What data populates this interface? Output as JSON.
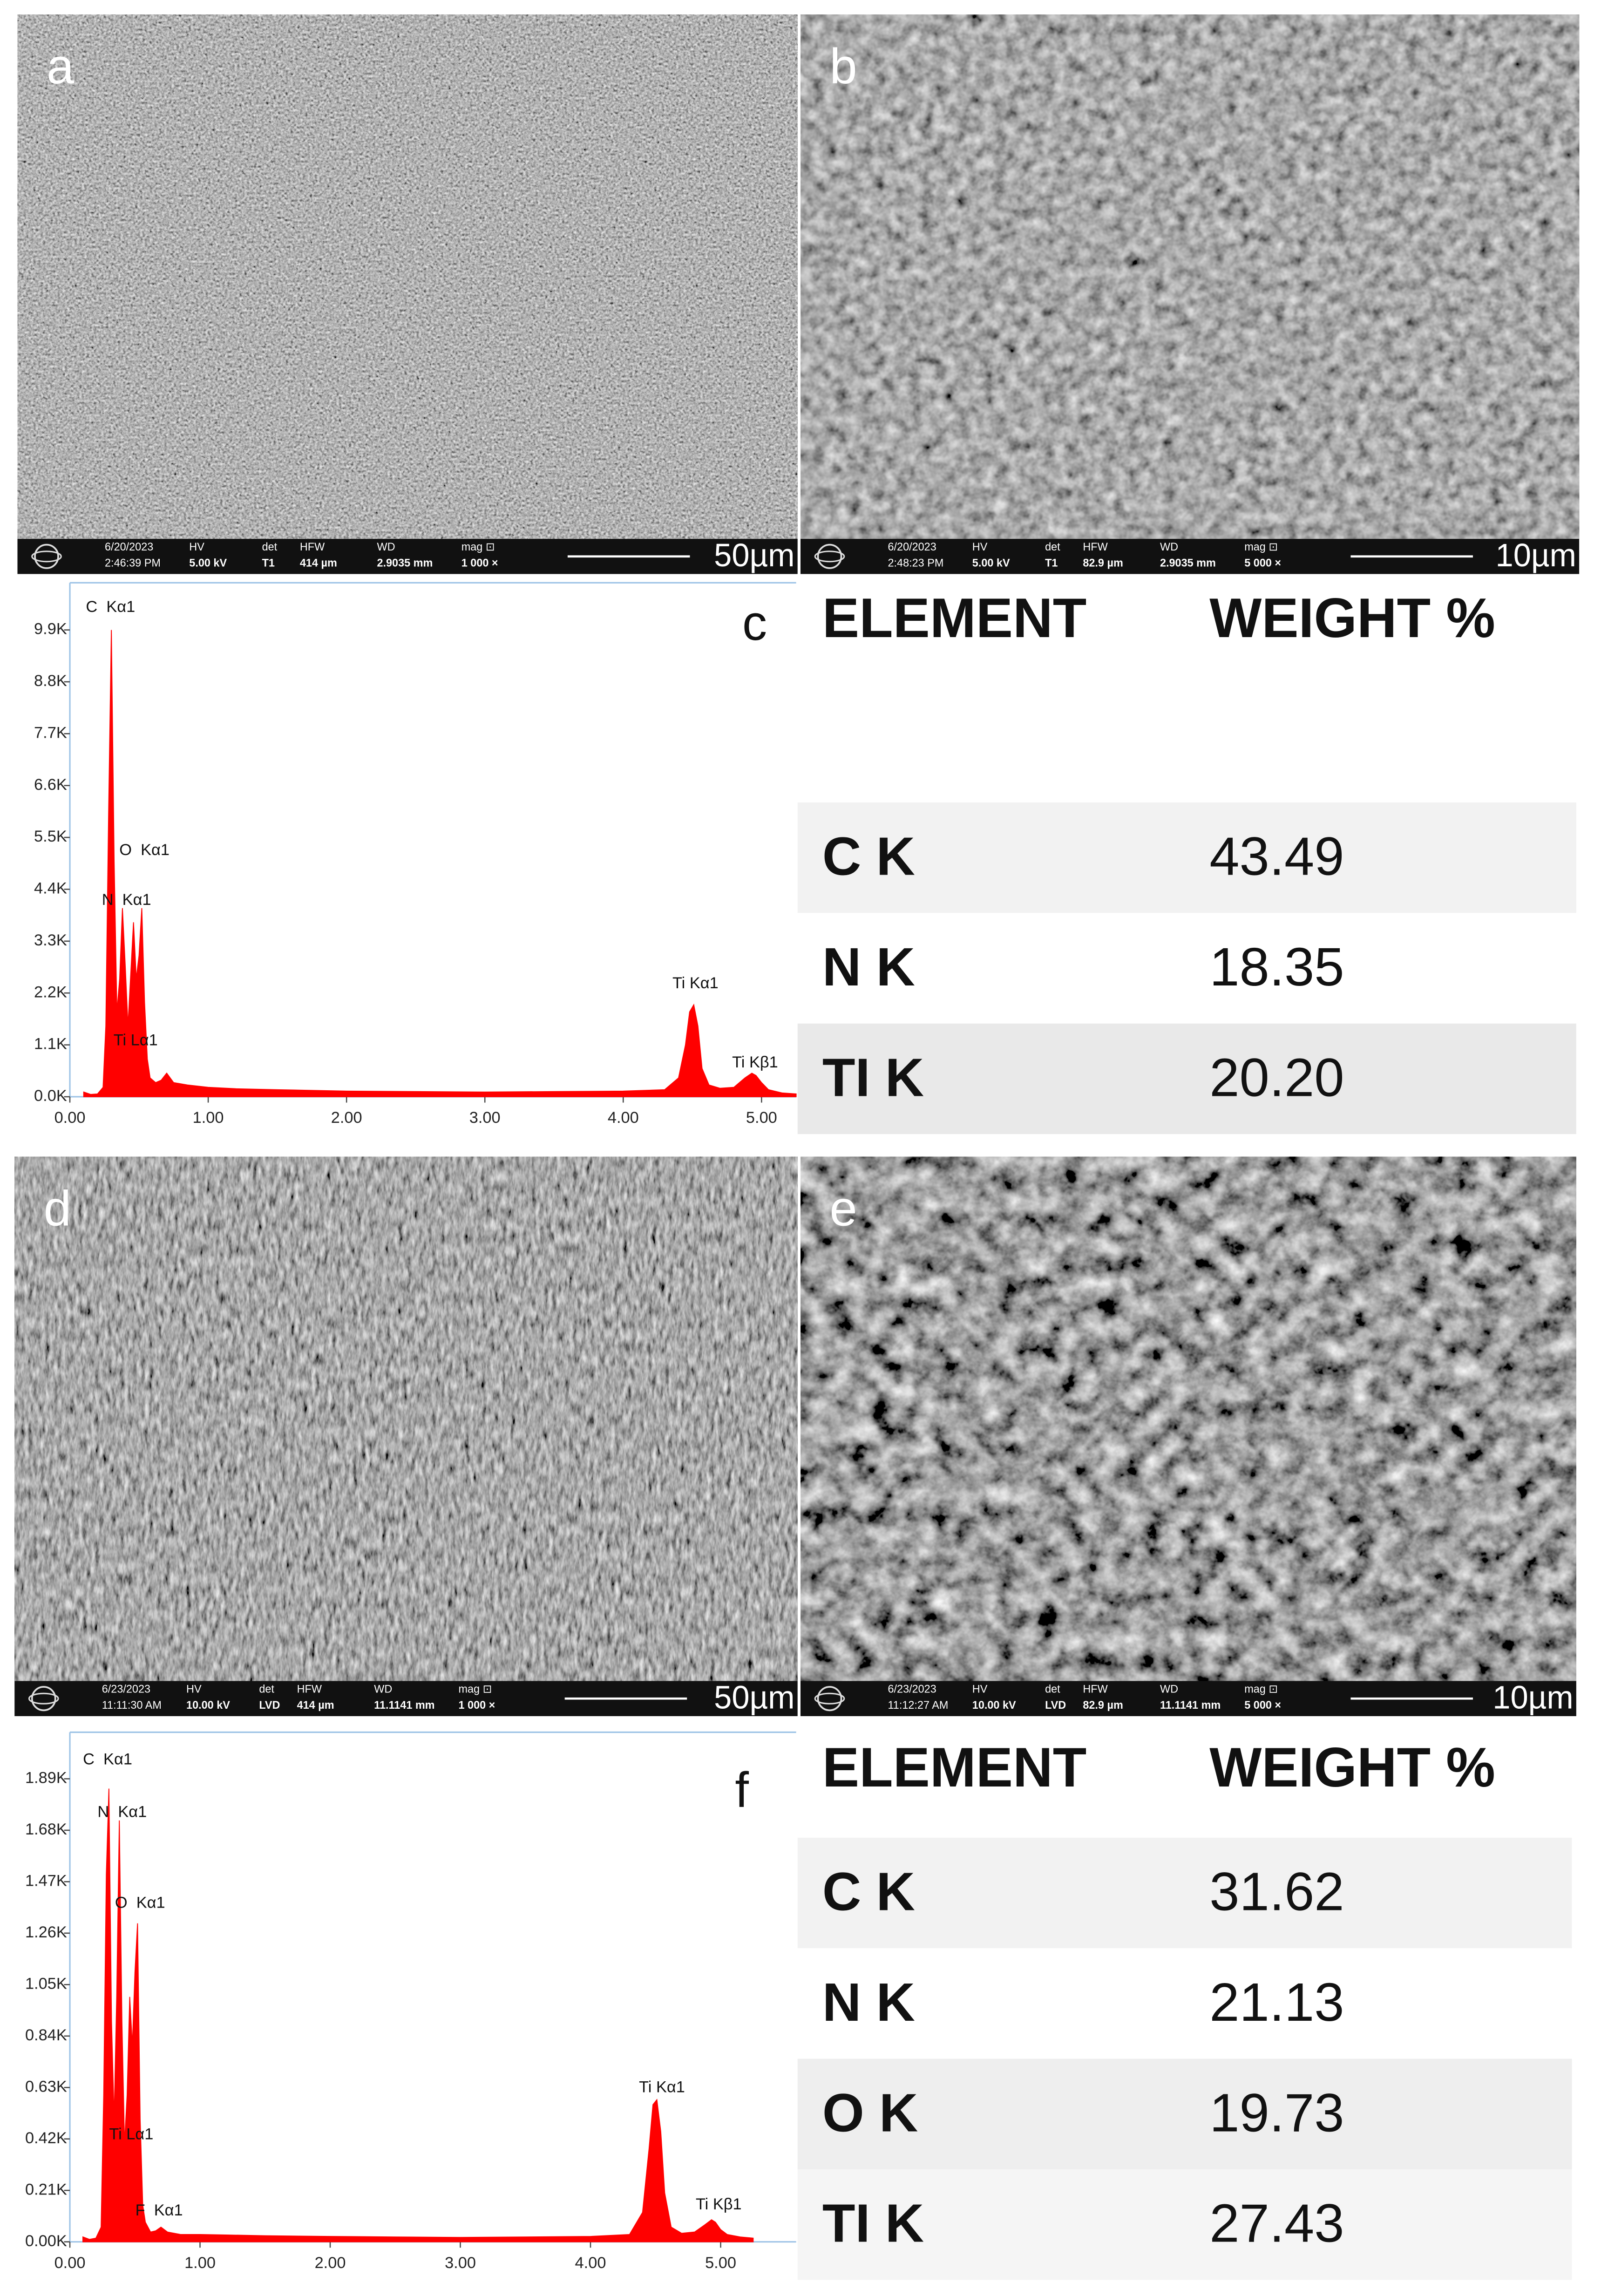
{
  "panels": [
    {
      "label": "a",
      "info": {
        "date": "6/20/2023",
        "time": "2:46:39 PM",
        "hv_label": "HV",
        "hv": "5.00 kV",
        "det_label": "det",
        "det": "T1",
        "hfw_label": "HFW",
        "hfw": "414 µm",
        "wd_label": "WD",
        "wd": "2.9035 mm",
        "mag_label": "mag ⊡",
        "mag": "1 000 ×",
        "scale": "50µm"
      }
    },
    {
      "label": "b",
      "info": {
        "date": "6/20/2023",
        "time": "2:48:23 PM",
        "hv_label": "HV",
        "hv": "5.00 kV",
        "det_label": "det",
        "det": "T1",
        "hfw_label": "HFW",
        "hfw": "82.9 µm",
        "wd_label": "WD",
        "wd": "2.9035 mm",
        "mag_label": "mag ⊡",
        "mag": "5 000 ×",
        "scale": "10µm"
      }
    },
    {
      "label": "d",
      "info": {
        "date": "6/23/2023",
        "time": "11:11:30 AM",
        "hv_label": "HV",
        "hv": "10.00 kV",
        "det_label": "det",
        "det": "LVD",
        "hfw_label": "HFW",
        "hfw": "414 µm",
        "wd_label": "WD",
        "wd": "11.1141 mm",
        "mag_label": "mag ⊡",
        "mag": "1 000 ×",
        "scale": "50µm"
      }
    },
    {
      "label": "e",
      "info": {
        "date": "6/23/2023",
        "time": "11:12:27 AM",
        "hv_label": "HV",
        "hv": "10.00 kV",
        "det_label": "det",
        "det": "LVD",
        "hfw_label": "HFW",
        "hfw": "82.9 µm",
        "wd_label": "WD",
        "wd": "11.1141 mm",
        "mag_label": "mag ⊡",
        "mag": "5 000 ×",
        "scale": "10µm"
      }
    }
  ],
  "chart_data": [
    {
      "type": "area",
      "label": "c",
      "color": "#ff0000",
      "x": [
        0.1,
        0.15,
        0.2,
        0.24,
        0.26,
        0.28,
        0.3,
        0.32,
        0.34,
        0.36,
        0.38,
        0.4,
        0.42,
        0.44,
        0.46,
        0.48,
        0.5,
        0.52,
        0.54,
        0.56,
        0.58,
        0.62,
        0.66,
        0.7,
        0.75,
        0.85,
        1.0,
        1.2,
        1.5,
        2.0,
        2.5,
        3.0,
        3.5,
        4.0,
        4.3,
        4.4,
        4.45,
        4.48,
        4.51,
        4.54,
        4.57,
        4.62,
        4.7,
        4.8,
        4.88,
        4.93,
        4.96,
        5.0,
        5.05,
        5.15,
        5.25
      ],
      "values": [
        100,
        50,
        60,
        200,
        1500,
        6000,
        9900,
        5000,
        1800,
        2500,
        4000,
        2800,
        1500,
        2600,
        3700,
        2500,
        3000,
        4000,
        2000,
        800,
        400,
        300,
        350,
        500,
        300,
        250,
        200,
        170,
        150,
        120,
        110,
        100,
        110,
        120,
        150,
        400,
        1100,
        1800,
        1950,
        1500,
        600,
        250,
        180,
        200,
        400,
        500,
        450,
        300,
        150,
        80,
        60
      ],
      "xlim": [
        0,
        5.25
      ],
      "xticks": [
        {
          "value": 0,
          "label": "0.00"
        },
        {
          "value": 1,
          "label": "1.00"
        },
        {
          "value": 2,
          "label": "2.00"
        },
        {
          "value": 3,
          "label": "3.00"
        },
        {
          "value": 4,
          "label": "4.00"
        },
        {
          "value": 5,
          "label": "5.00"
        }
      ],
      "ylim": [
        0,
        10900
      ],
      "yticks": [
        {
          "value": 0,
          "label": "0.0K"
        },
        {
          "value": 1100,
          "label": "1.1K"
        },
        {
          "value": 2200,
          "label": "2.2K"
        },
        {
          "value": 3300,
          "label": "3.3K"
        },
        {
          "value": 4400,
          "label": "4.4K"
        },
        {
          "value": 5500,
          "label": "5.5K"
        },
        {
          "value": 6600,
          "label": "6.6K"
        },
        {
          "value": 7700,
          "label": "7.7K"
        },
        {
          "value": 8800,
          "label": "8.8K"
        },
        {
          "value": 9900,
          "label": "9.9K"
        }
      ],
      "annotations": [
        "C  Kα1",
        "O  Kα1",
        "N  Kα1",
        "Ti Lα1",
        "Ti Kα1",
        "Ti Kβ1"
      ]
    },
    {
      "type": "area",
      "label": "f",
      "color": "#ff0000",
      "x": [
        0.1,
        0.15,
        0.2,
        0.24,
        0.26,
        0.28,
        0.3,
        0.32,
        0.34,
        0.36,
        0.38,
        0.4,
        0.42,
        0.44,
        0.46,
        0.48,
        0.5,
        0.52,
        0.54,
        0.56,
        0.58,
        0.62,
        0.66,
        0.7,
        0.75,
        0.85,
        1.0,
        1.2,
        1.5,
        2.0,
        2.5,
        3.0,
        3.5,
        4.0,
        4.3,
        4.4,
        4.45,
        4.48,
        4.51,
        4.54,
        4.57,
        4.62,
        4.7,
        4.8,
        4.88,
        4.93,
        4.96,
        5.0,
        5.05,
        5.15,
        5.25
      ],
      "values": [
        20,
        10,
        15,
        60,
        600,
        1500,
        1850,
        900,
        500,
        1000,
        1720,
        900,
        400,
        600,
        1000,
        800,
        1100,
        1300,
        500,
        150,
        80,
        40,
        45,
        60,
        40,
        30,
        30,
        28,
        25,
        22,
        20,
        18,
        20,
        22,
        30,
        120,
        380,
        560,
        580,
        450,
        200,
        60,
        35,
        40,
        70,
        90,
        80,
        50,
        30,
        20,
        15
      ],
      "xlim": [
        0,
        5.58
      ],
      "xticks": [
        {
          "value": 0,
          "label": "0.00"
        },
        {
          "value": 1,
          "label": "1.00"
        },
        {
          "value": 2,
          "label": "2.00"
        },
        {
          "value": 3,
          "label": "3.00"
        },
        {
          "value": 4,
          "label": "4.00"
        },
        {
          "value": 5,
          "label": "5.00"
        }
      ],
      "ylim": [
        0,
        2080
      ],
      "yticks": [
        {
          "value": 0,
          "label": "0.00K"
        },
        {
          "value": 210,
          "label": "0.21K"
        },
        {
          "value": 420,
          "label": "0.42K"
        },
        {
          "value": 630,
          "label": "0.63K"
        },
        {
          "value": 840,
          "label": "0.84K"
        },
        {
          "value": 1050,
          "label": "1.05K"
        },
        {
          "value": 1260,
          "label": "1.26K"
        },
        {
          "value": 1470,
          "label": "1.47K"
        },
        {
          "value": 1680,
          "label": "1.68K"
        },
        {
          "value": 1890,
          "label": "1.89K"
        }
      ],
      "annotations": [
        "C  Kα1",
        "N  Kα1",
        "O  Kα1",
        "Ti Lα1",
        "F  Kα1",
        "Ti Kα1",
        "Ti Kβ1"
      ]
    }
  ],
  "tables": [
    {
      "header": [
        "ELEMENT",
        "WEIGHT %"
      ],
      "rows": [
        [
          "C K",
          "43.49"
        ],
        [
          "N K",
          "18.35"
        ],
        [
          "TI K",
          "20.20"
        ]
      ]
    },
    {
      "header": [
        "ELEMENT",
        "WEIGHT %"
      ],
      "rows": [
        [
          "C K",
          "31.62"
        ],
        [
          "N K",
          "21.13"
        ],
        [
          "O K",
          "19.73"
        ],
        [
          "TI K",
          "27.43"
        ]
      ]
    }
  ]
}
